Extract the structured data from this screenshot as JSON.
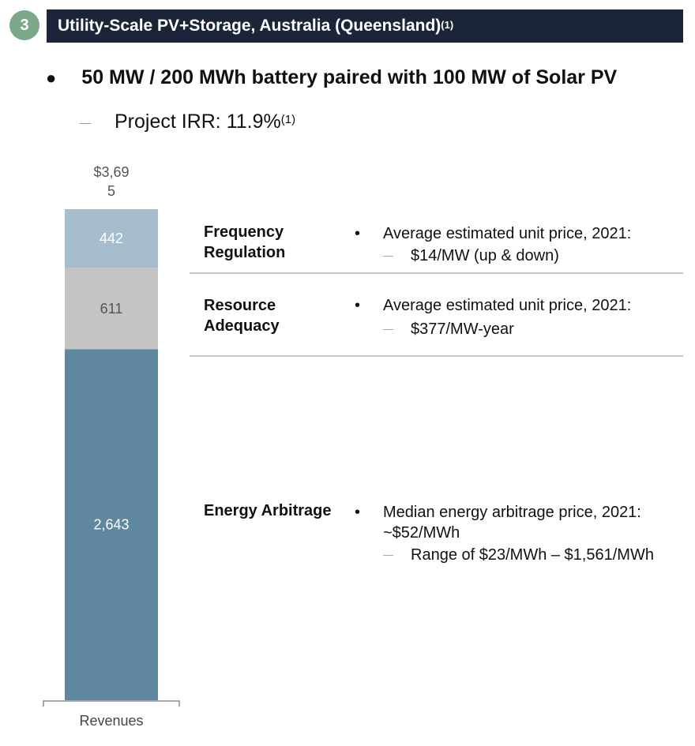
{
  "header": {
    "badge_number": "3",
    "title": "Utility-Scale PV+Storage, Australia (Queensland)",
    "footnote": "(1)"
  },
  "summary": {
    "headline": "50 MW / 200 MWh battery paired with 100 MW of Solar PV",
    "irr_label": "Project IRR: 11.9%",
    "irr_footnote": "(1)"
  },
  "chart_data": {
    "type": "bar",
    "stacked": true,
    "categories": [
      "Revenues"
    ],
    "total_label": "$3,69\n5",
    "series": [
      {
        "name": "Energy Arbitrage",
        "values": [
          2643
        ],
        "label": "2,643",
        "color": "#5f879f"
      },
      {
        "name": "Resource Adequacy",
        "values": [
          611
        ],
        "label": "611",
        "color": "#c4c4c4"
      },
      {
        "name": "Frequency Regulation",
        "values": [
          442
        ],
        "label": "442",
        "color": "#a5bdcd"
      }
    ]
  },
  "rows": [
    {
      "title": "Frequency Regulation",
      "bullet": "Average estimated unit price, 2021:",
      "sub": "$14/MW (up & down)"
    },
    {
      "title": "Resource Adequacy",
      "bullet": "Average estimated unit price, 2021:",
      "sub": "$377/MW-year"
    },
    {
      "title": "Energy Arbitrage",
      "bullet": "Median energy arbitrage price, 2021: ~$52/MWh",
      "sub": "Range of $23/MWh – $1,561/MWh"
    }
  ]
}
